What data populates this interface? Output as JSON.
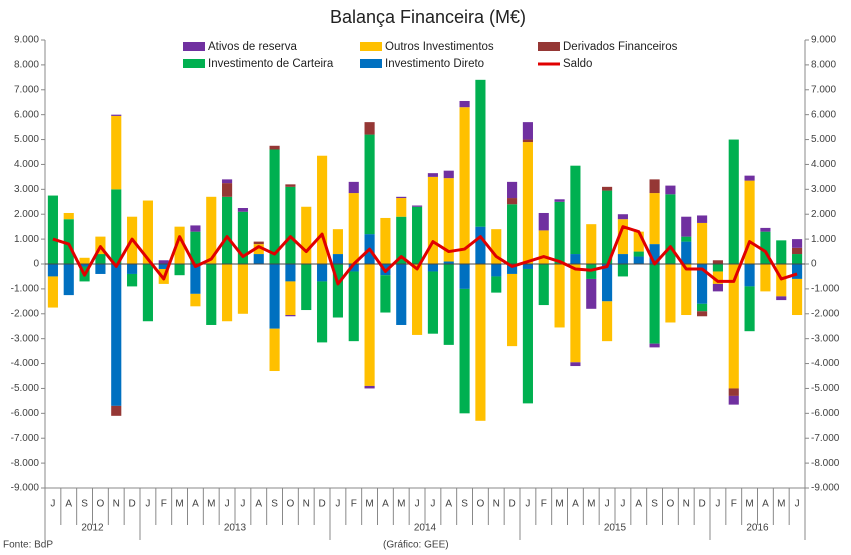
{
  "chart_data": {
    "type": "bar",
    "stacked": true,
    "title": "Balança Financeira (M€)",
    "categories": [
      "J",
      "A",
      "S",
      "O",
      "N",
      "D",
      "J",
      "F",
      "M",
      "A",
      "M",
      "J",
      "J",
      "A",
      "S",
      "O",
      "N",
      "D",
      "J",
      "F",
      "M",
      "A",
      "M",
      "J",
      "J",
      "A",
      "S",
      "O",
      "N",
      "D",
      "J",
      "F",
      "M",
      "A",
      "M",
      "J",
      "J",
      "A",
      "S",
      "O",
      "N",
      "D",
      "J",
      "F",
      "M",
      "A",
      "M",
      "J"
    ],
    "year_groups": [
      {
        "label": "2012",
        "count": 6
      },
      {
        "label": "2013",
        "count": 12
      },
      {
        "label": "2014",
        "count": 12
      },
      {
        "label": "2015",
        "count": 12
      },
      {
        "label": "2016",
        "count": 6
      }
    ],
    "series": [
      {
        "name": "Investimento Direto",
        "color": "#0070c0",
        "values": [
          -500,
          -1250,
          -100,
          -400,
          -5700,
          -400,
          0,
          -200,
          0,
          -1200,
          0,
          0,
          0,
          400,
          -2600,
          -700,
          0,
          -700,
          400,
          -300,
          1200,
          -450,
          -2450,
          0,
          -300,
          100,
          -1000,
          1500,
          -500,
          -400,
          -200,
          0,
          0,
          400,
          0,
          -1500,
          400,
          300,
          800,
          0,
          900,
          -1600,
          0,
          0,
          -900,
          0,
          0,
          -600
        ]
      },
      {
        "name": "Investimento de Carteira",
        "color": "#00b050",
        "values": [
          2750,
          1800,
          -600,
          400,
          3000,
          -500,
          -2300,
          0,
          -450,
          1300,
          -2450,
          2700,
          2100,
          0,
          4600,
          3100,
          -1850,
          -2450,
          -2150,
          -2800,
          4000,
          -1500,
          1900,
          2300,
          -2500,
          -3250,
          -5000,
          5900,
          -650,
          2400,
          -5400,
          -1650,
          2500,
          3550,
          -600,
          2950,
          -500,
          200,
          -3200,
          2800,
          200,
          -300,
          -300,
          5000,
          -1800,
          1300,
          950,
          400
        ]
      },
      {
        "name": "Outros Investimentos",
        "color": "#ffc000",
        "values": [
          -1250,
          250,
          250,
          700,
          2950,
          1900,
          2550,
          -600,
          1500,
          -500,
          2700,
          -2300,
          -2000,
          400,
          -1700,
          -1350,
          2300,
          4350,
          1000,
          2850,
          -4900,
          1850,
          750,
          -2850,
          3500,
          3350,
          6300,
          -6300,
          1400,
          -2900,
          4900,
          1350,
          -2550,
          -3950,
          1600,
          -1600,
          1400,
          800,
          2050,
          -2350,
          -2050,
          1650,
          -500,
          -5000,
          3350,
          -1100,
          -1300,
          -1450
        ]
      },
      {
        "name": "Derivados Financeiros",
        "color": "#953735",
        "values": [
          0,
          0,
          0,
          0,
          -400,
          0,
          0,
          0,
          0,
          0,
          0,
          550,
          0,
          100,
          150,
          100,
          0,
          0,
          0,
          0,
          500,
          0,
          0,
          0,
          0,
          0,
          0,
          0,
          0,
          250,
          100,
          0,
          0,
          0,
          0,
          150,
          0,
          0,
          550,
          0,
          0,
          -200,
          150,
          -300,
          0,
          0,
          0,
          250
        ]
      },
      {
        "name": "Ativos de reserva",
        "color": "#7030a0",
        "values": [
          0,
          0,
          0,
          0,
          50,
          0,
          0,
          150,
          0,
          250,
          0,
          150,
          150,
          0,
          0,
          -50,
          0,
          0,
          0,
          450,
          -100,
          0,
          50,
          50,
          150,
          300,
          250,
          0,
          0,
          650,
          700,
          700,
          100,
          -150,
          -1200,
          0,
          200,
          0,
          -150,
          350,
          800,
          300,
          -300,
          -350,
          200,
          150,
          -150,
          350
        ]
      },
      {
        "name": "Saldo",
        "type": "line",
        "color": "#e00000",
        "values": [
          1000,
          800,
          -450,
          700,
          -100,
          1000,
          200,
          -600,
          1100,
          -100,
          200,
          1100,
          300,
          700,
          400,
          1100,
          500,
          1200,
          -800,
          0,
          600,
          -300,
          300,
          -200,
          900,
          500,
          600,
          1100,
          300,
          -100,
          100,
          300,
          100,
          -200,
          -250,
          -100,
          1500,
          1300,
          0,
          700,
          -200,
          -200,
          -700,
          -700,
          900,
          500,
          -600,
          -400
        ]
      }
    ],
    "ylim": [
      -9000,
      9000
    ],
    "yticks": [
      {
        "value": -9000,
        "label": "-9.000"
      },
      {
        "value": -8000,
        "label": "-8.000"
      },
      {
        "value": -7000,
        "label": "-7.000"
      },
      {
        "value": -6000,
        "label": "-6.000"
      },
      {
        "value": -5000,
        "label": "-5.000"
      },
      {
        "value": -4000,
        "label": "-4.000"
      },
      {
        "value": -3000,
        "label": "-3.000"
      },
      {
        "value": -2000,
        "label": "-2.000"
      },
      {
        "value": -1000,
        "label": "-1.000"
      },
      0,
      {
        "value": 1000,
        "label": "1.000"
      },
      {
        "value": 2000,
        "label": "2.000"
      },
      {
        "value": 3000,
        "label": "3.000"
      },
      {
        "value": 4000,
        "label": "4.000"
      },
      {
        "value": 5000,
        "label": "5.000"
      },
      {
        "value": 6000,
        "label": "6.000"
      },
      {
        "value": 7000,
        "label": "7.000"
      },
      {
        "value": 8000,
        "label": "8.000"
      },
      {
        "value": 9000,
        "label": "9.000"
      }
    ],
    "grid": false,
    "source": "Fonte: BdP",
    "credit": "(Gráfico: GEE)"
  }
}
